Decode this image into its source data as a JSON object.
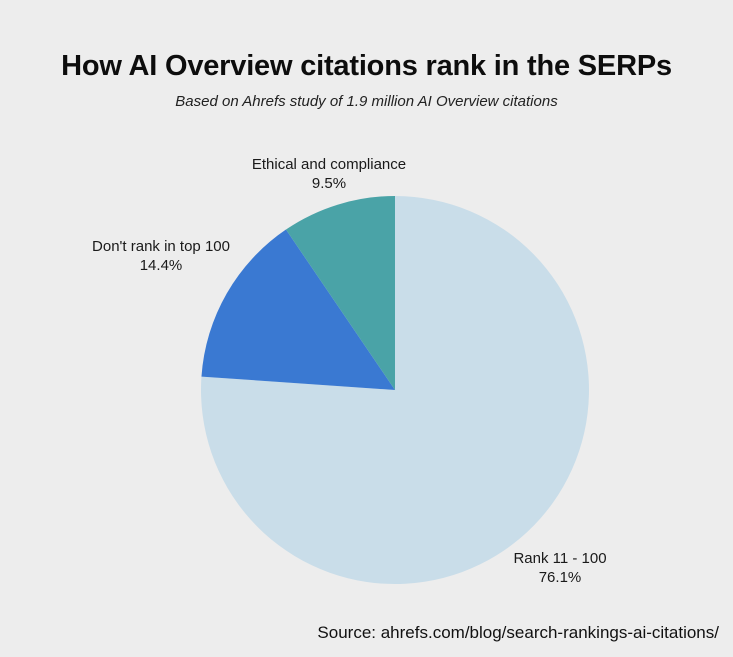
{
  "chart_data": {
    "type": "pie",
    "title": "How AI Overview citations rank in the SERPs",
    "subtitle": "Based on Ahrefs study of 1.9 million AI Overview citations",
    "slices": [
      {
        "label": "Rank 11 - 100",
        "value": 76.1,
        "display": "76.1%",
        "color": "#c9dde9"
      },
      {
        "label": "Don't rank in top 100",
        "value": 14.4,
        "display": "14.4%",
        "color": "#3a79d2"
      },
      {
        "label": "Ethical and compliance",
        "value": 9.5,
        "display": "9.5%",
        "color": "#4aa3a7"
      }
    ],
    "start_angle": "12 o'clock",
    "direction": "clockwise",
    "source": "Source: ahrefs.com/blog/search-rankings-ai-citations/"
  }
}
